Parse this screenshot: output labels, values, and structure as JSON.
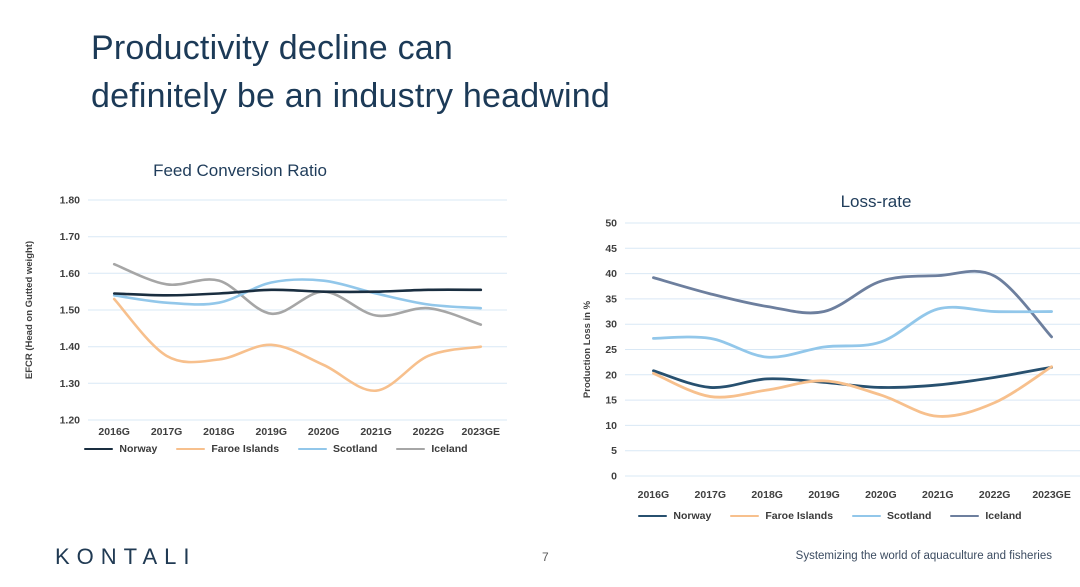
{
  "slide": {
    "title_line1": "Productivity decline can",
    "title_line2": "definitely be an industry headwind"
  },
  "footer": {
    "logo": "KONTALI",
    "page_number": "7",
    "tagline": "Systemizing the world of aquaculture and fisheries"
  },
  "chart_data": [
    {
      "type": "line",
      "title": "Feed Conversion Ratio",
      "xlabel": "",
      "ylabel": "EFCR (Head on Gutted weight)",
      "ylim": [
        1.2,
        1.8
      ],
      "yticks": [
        "1.80",
        "1.70",
        "1.60",
        "1.50",
        "1.40",
        "1.30",
        "1.20"
      ],
      "grid": true,
      "legend_position": "bottom",
      "gridline_color": "#d9e8f5",
      "tick_color": "#404040",
      "draw_order": [
        3,
        2,
        0,
        1
      ],
      "categories": [
        "2016G",
        "2017G",
        "2018G",
        "2019G",
        "2020G",
        "2021G",
        "2022G",
        "2023GE"
      ],
      "series": [
        {
          "name": "Norway",
          "color": "#1a2e40",
          "values": [
            1.545,
            1.54,
            1.545,
            1.555,
            1.55,
            1.55,
            1.555,
            1.555
          ]
        },
        {
          "name": "Faroe Islands",
          "color": "#f7c08d",
          "values": [
            1.53,
            1.375,
            1.365,
            1.405,
            1.35,
            1.28,
            1.375,
            1.4
          ]
        },
        {
          "name": "Scotland",
          "color": "#92c7ea",
          "values": [
            1.54,
            1.52,
            1.52,
            1.575,
            1.58,
            1.545,
            1.515,
            1.505
          ]
        },
        {
          "name": "Iceland",
          "color": "#a6a6a6",
          "values": [
            1.625,
            1.57,
            1.58,
            1.49,
            1.55,
            1.485,
            1.505,
            1.46
          ]
        }
      ]
    },
    {
      "type": "line",
      "title": "Loss-rate",
      "xlabel": "",
      "ylabel": "Production Loss in %",
      "ylim": [
        0,
        50
      ],
      "yticks": [
        "50",
        "45",
        "40",
        "35",
        "30",
        "25",
        "20",
        "15",
        "10",
        "5",
        "0"
      ],
      "grid": true,
      "legend_position": "bottom",
      "gridline_color": "#d9e8f5",
      "tick_color": "#404040",
      "draw_order": [
        3,
        2,
        0,
        1
      ],
      "categories": [
        "2016G",
        "2017G",
        "2018G",
        "2019G",
        "2020G",
        "2021G",
        "2022G",
        "2023GE"
      ],
      "series": [
        {
          "name": "Norway",
          "color": "#27506f",
          "values": [
            20.8,
            17.5,
            19.2,
            18.5,
            17.5,
            18.0,
            19.5,
            21.5
          ]
        },
        {
          "name": "Faroe Islands",
          "color": "#f7c08d",
          "values": [
            20.3,
            15.7,
            17.0,
            18.8,
            16.0,
            11.8,
            14.5,
            21.6
          ]
        },
        {
          "name": "Scotland",
          "color": "#92c7ea",
          "values": [
            27.2,
            27.2,
            23.5,
            25.5,
            26.5,
            33.0,
            32.5,
            32.5
          ]
        },
        {
          "name": "Iceland",
          "color": "#6d7f9e",
          "values": [
            39.2,
            36.0,
            33.5,
            32.5,
            38.5,
            39.6,
            39.5,
            27.5
          ]
        }
      ]
    }
  ]
}
